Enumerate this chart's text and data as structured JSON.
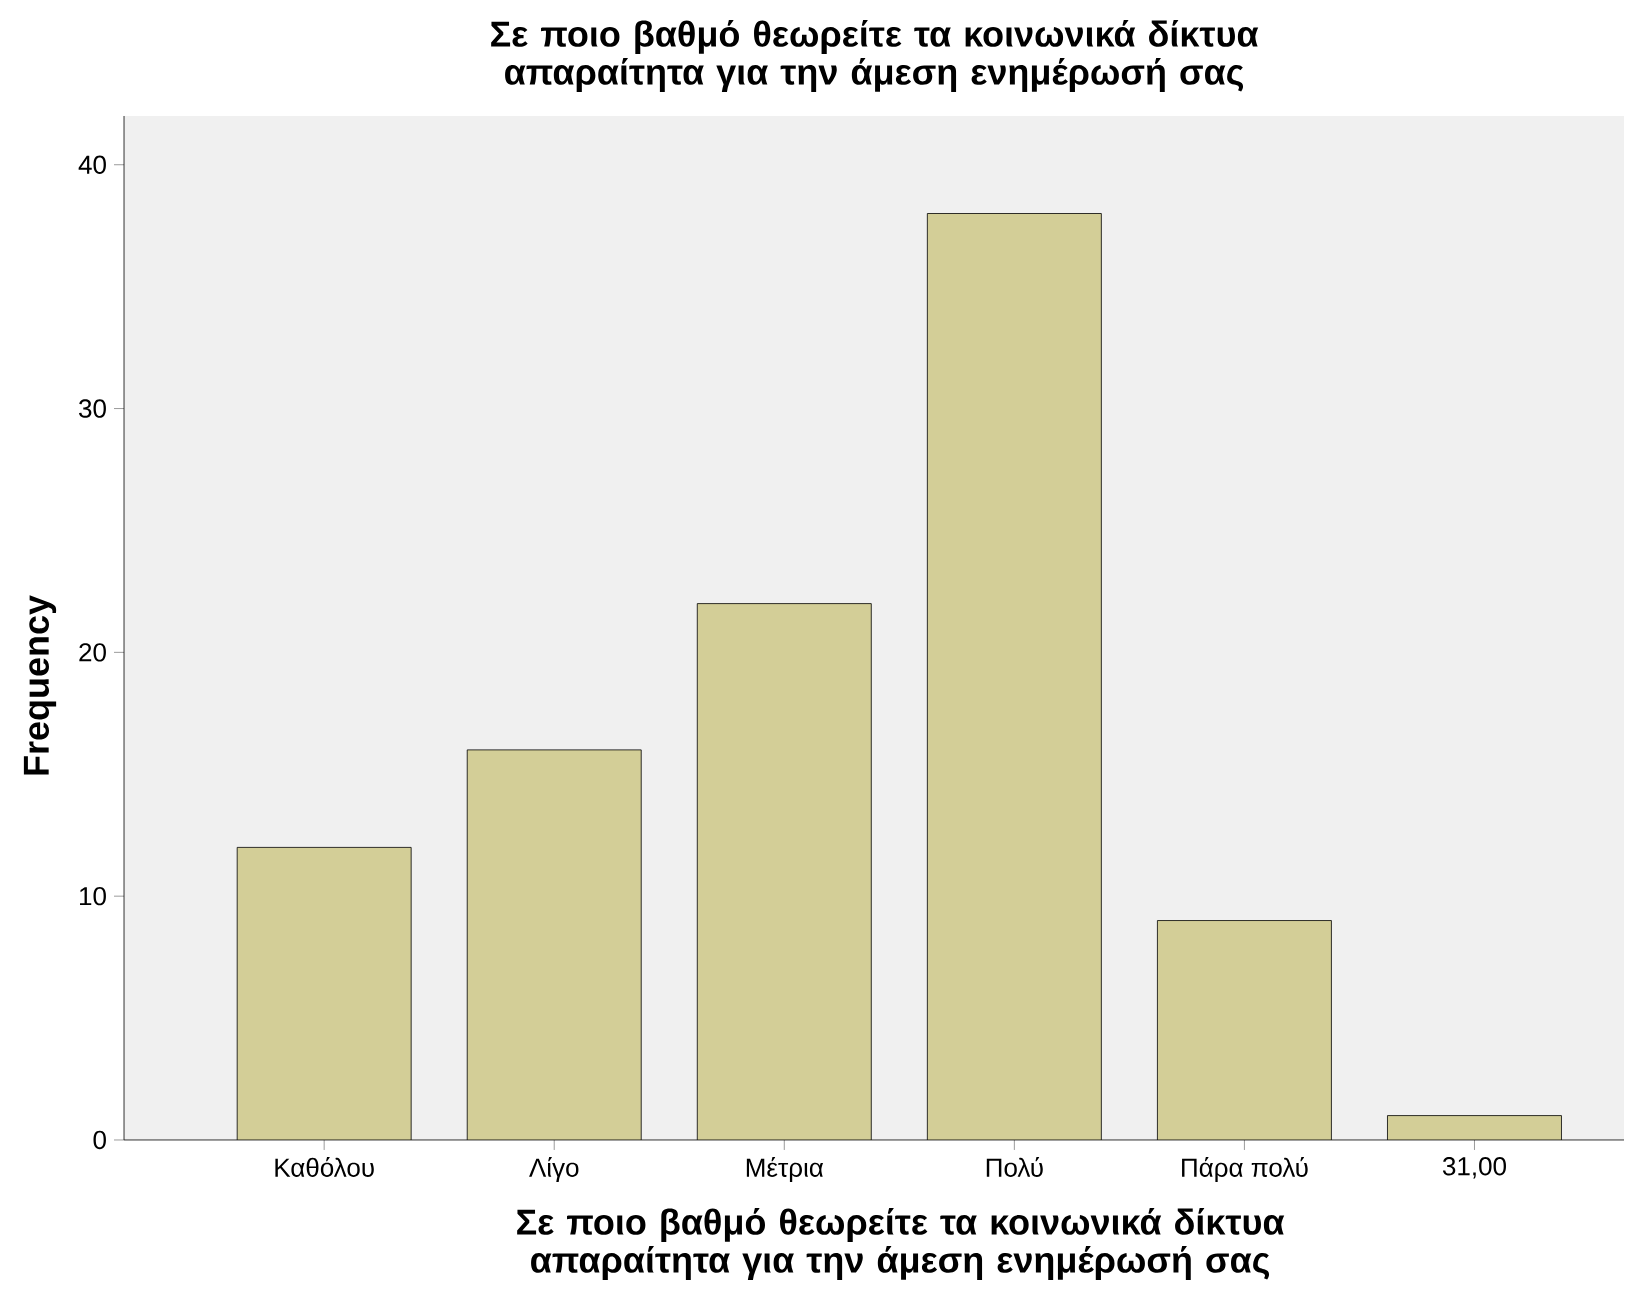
{
  "chart_data": {
    "type": "bar",
    "title": "Σε ποιο βαθμό θεωρείτε τα κοινωνικά δίκτυα απαραίτητα για την άμεση ενημέρωσή σας",
    "xlabel": "Σε ποιο βαθμό θεωρείτε τα κοινωνικά δίκτυα απαραίτητα για την άμεση ενημέρωσή σας",
    "ylabel": "Frequency",
    "categories": [
      "Καθόλου",
      "Λίγο",
      "Μέτρια",
      "Πολύ",
      "Πάρα πολύ",
      "31,00"
    ],
    "values": [
      12,
      16,
      22,
      38,
      9,
      1
    ],
    "color": "#d3ce97",
    "ylim": [
      0,
      42
    ],
    "yticks": [
      0,
      10,
      20,
      30,
      40
    ]
  }
}
